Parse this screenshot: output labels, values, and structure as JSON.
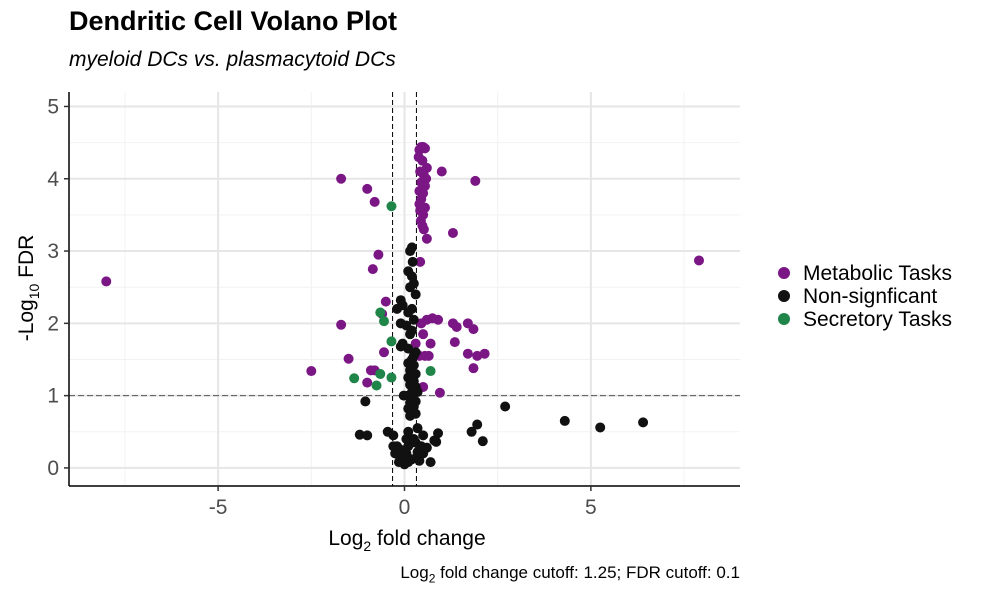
{
  "chart_data": {
    "type": "scatter",
    "title": "Dendritic Cell Volano Plot",
    "subtitle": "myeloid DCs vs. plasmacytoid DCs",
    "xlabel_main": "Log",
    "xlabel_sub": "2",
    "xlabel_rest": " fold change",
    "ylabel_pre": "-Log",
    "ylabel_sub": "10",
    "ylabel_rest": " FDR",
    "caption_pre": "Log",
    "caption_sub": "2",
    "caption_rest": " fold change cutoff: 1.25; FDR cutoff: 0.1",
    "xlim": [
      -9.0,
      9.0
    ],
    "ylim": [
      -0.25,
      5.2
    ],
    "x_ticks": [
      -5,
      0,
      5
    ],
    "x_tick_labels": [
      "-5",
      "0",
      "5"
    ],
    "y_ticks": [
      0,
      1,
      2,
      3,
      4,
      5
    ],
    "y_tick_labels": [
      "0",
      "1",
      "2",
      "3",
      "4",
      "5"
    ],
    "grid": true,
    "cutoff_lines": {
      "x": [
        -0.32,
        0.32
      ],
      "y": 1.0
    },
    "legend_position": "right",
    "colors": {
      "metabolic": "#7b1685",
      "nonsig": "#111111",
      "secretory": "#1f8548"
    },
    "series": [
      {
        "name": "Metabolic Tasks",
        "color_key": "metabolic",
        "points": [
          [
            -8.0,
            2.58
          ],
          [
            7.9,
            2.87
          ],
          [
            -2.5,
            1.34
          ],
          [
            -1.7,
            4.0
          ],
          [
            -1.7,
            1.98
          ],
          [
            -1.0,
            3.86
          ],
          [
            -0.9,
            1.35
          ],
          [
            -0.8,
            1.35
          ],
          [
            -0.8,
            3.68
          ],
          [
            -0.7,
            2.95
          ],
          [
            -0.5,
            2.3
          ],
          [
            -0.6,
            2.13
          ],
          [
            -0.55,
            1.6
          ],
          [
            -0.85,
            2.75
          ],
          [
            -1.5,
            1.51
          ],
          [
            -1.0,
            1.18
          ],
          [
            1.0,
            4.1
          ],
          [
            1.9,
            3.97
          ],
          [
            1.3,
            3.25
          ],
          [
            0.6,
            3.17
          ],
          [
            0.4,
            4.4
          ],
          [
            0.45,
            4.44
          ],
          [
            0.5,
            4.44
          ],
          [
            0.55,
            4.42
          ],
          [
            0.38,
            4.3
          ],
          [
            0.48,
            4.25
          ],
          [
            0.6,
            4.15
          ],
          [
            0.42,
            4.1
          ],
          [
            0.52,
            4.05
          ],
          [
            0.58,
            4.0
          ],
          [
            0.45,
            3.95
          ],
          [
            0.55,
            3.9
          ],
          [
            0.4,
            3.83
          ],
          [
            0.5,
            3.8
          ],
          [
            0.45,
            3.72
          ],
          [
            0.4,
            3.65
          ],
          [
            0.55,
            3.6
          ],
          [
            0.42,
            3.56
          ],
          [
            0.5,
            3.5
          ],
          [
            0.44,
            3.42
          ],
          [
            0.48,
            3.35
          ],
          [
            0.52,
            3.3
          ],
          [
            0.42,
            2.85
          ],
          [
            1.3,
            2.0
          ],
          [
            1.4,
            1.95
          ],
          [
            1.85,
            1.92
          ],
          [
            1.7,
            2.0
          ],
          [
            1.35,
            1.74
          ],
          [
            0.9,
            2.05
          ],
          [
            0.75,
            2.07
          ],
          [
            0.6,
            2.05
          ],
          [
            0.45,
            2.0
          ],
          [
            0.5,
            1.85
          ],
          [
            0.7,
            1.72
          ],
          [
            1.7,
            1.58
          ],
          [
            1.95,
            1.55
          ],
          [
            2.15,
            1.58
          ],
          [
            1.85,
            1.38
          ],
          [
            0.4,
            1.55
          ],
          [
            0.55,
            1.55
          ],
          [
            0.65,
            1.55
          ],
          [
            0.5,
            1.12
          ],
          [
            0.95,
            1.04
          ],
          [
            0.3,
            1.72
          ]
        ]
      },
      {
        "name": "Non-signficant",
        "color_key": "nonsig",
        "points": [
          [
            0.2,
            3.05
          ],
          [
            0.15,
            3.0
          ],
          [
            0.22,
            2.85
          ],
          [
            0.1,
            2.72
          ],
          [
            0.2,
            2.65
          ],
          [
            0.25,
            2.55
          ],
          [
            0.15,
            2.5
          ],
          [
            0.3,
            2.4
          ],
          [
            -0.1,
            2.32
          ],
          [
            -0.05,
            2.25
          ],
          [
            -0.2,
            2.2
          ],
          [
            0.2,
            2.2
          ],
          [
            0.1,
            2.15
          ],
          [
            0.25,
            2.05
          ],
          [
            -0.1,
            2.0
          ],
          [
            0.05,
            1.97
          ],
          [
            0.2,
            1.9
          ],
          [
            0.15,
            1.85
          ],
          [
            -0.05,
            1.72
          ],
          [
            -0.1,
            1.68
          ],
          [
            0.1,
            1.65
          ],
          [
            0.3,
            1.6
          ],
          [
            0.25,
            1.55
          ],
          [
            0.2,
            1.5
          ],
          [
            0.1,
            1.45
          ],
          [
            0.25,
            1.42
          ],
          [
            0.15,
            1.35
          ],
          [
            0.3,
            1.3
          ],
          [
            0.2,
            1.28
          ],
          [
            0.1,
            1.25
          ],
          [
            0.25,
            1.2
          ],
          [
            0.15,
            1.15
          ],
          [
            0.3,
            1.12
          ],
          [
            0.2,
            1.05
          ],
          [
            0.35,
            1.05
          ],
          [
            0.1,
            1.0
          ],
          [
            -0.02,
            1.0
          ],
          [
            0.2,
            0.95
          ],
          [
            0.3,
            0.92
          ],
          [
            0.15,
            0.9
          ],
          [
            0.25,
            0.85
          ],
          [
            0.1,
            0.82
          ],
          [
            0.2,
            0.78
          ],
          [
            0.3,
            0.75
          ],
          [
            0.15,
            0.72
          ],
          [
            -1.05,
            0.92
          ],
          [
            2.7,
            0.85
          ],
          [
            4.3,
            0.65
          ],
          [
            5.25,
            0.56
          ],
          [
            6.4,
            0.63
          ],
          [
            1.95,
            0.6
          ],
          [
            1.8,
            0.5
          ],
          [
            2.1,
            0.37
          ],
          [
            -1.0,
            0.45
          ],
          [
            -1.2,
            0.46
          ],
          [
            -0.45,
            0.5
          ],
          [
            -0.3,
            0.45
          ],
          [
            0.1,
            0.5
          ],
          [
            0.35,
            0.55
          ],
          [
            0.9,
            0.48
          ],
          [
            0.5,
            0.45
          ],
          [
            0.85,
            0.36
          ],
          [
            0.8,
            0.38
          ],
          [
            0.3,
            0.35
          ],
          [
            -0.2,
            0.3
          ],
          [
            -0.1,
            0.25
          ],
          [
            0.1,
            0.3
          ],
          [
            0.05,
            0.2
          ],
          [
            -0.05,
            0.15
          ],
          [
            0.2,
            0.12
          ],
          [
            0.1,
            0.08
          ],
          [
            0.0,
            0.05
          ],
          [
            0.4,
            0.1
          ],
          [
            0.5,
            0.2
          ],
          [
            0.35,
            0.22
          ],
          [
            0.7,
            0.08
          ],
          [
            -0.15,
            0.08
          ],
          [
            0.2,
            0.35
          ],
          [
            0.25,
            0.4
          ],
          [
            0.15,
            0.4
          ],
          [
            0.45,
            0.3
          ],
          [
            0.6,
            0.28
          ],
          [
            -0.3,
            0.3
          ],
          [
            -0.25,
            0.2
          ],
          [
            0.05,
            0.4
          ]
        ]
      },
      {
        "name": "Secretory Tasks",
        "color_key": "secretory",
        "points": [
          [
            -0.35,
            3.62
          ],
          [
            -0.65,
            2.15
          ],
          [
            -0.55,
            2.03
          ],
          [
            -0.35,
            1.75
          ],
          [
            -1.35,
            1.24
          ],
          [
            -0.65,
            1.3
          ],
          [
            -0.75,
            1.14
          ],
          [
            -0.35,
            1.25
          ],
          [
            0.7,
            1.34
          ]
        ]
      }
    ],
    "legend": [
      {
        "label": "Metabolic Tasks",
        "color_key": "metabolic"
      },
      {
        "label": "Non-signficant",
        "color_key": "nonsig"
      },
      {
        "label": "Secretory Tasks",
        "color_key": "secretory"
      }
    ]
  }
}
